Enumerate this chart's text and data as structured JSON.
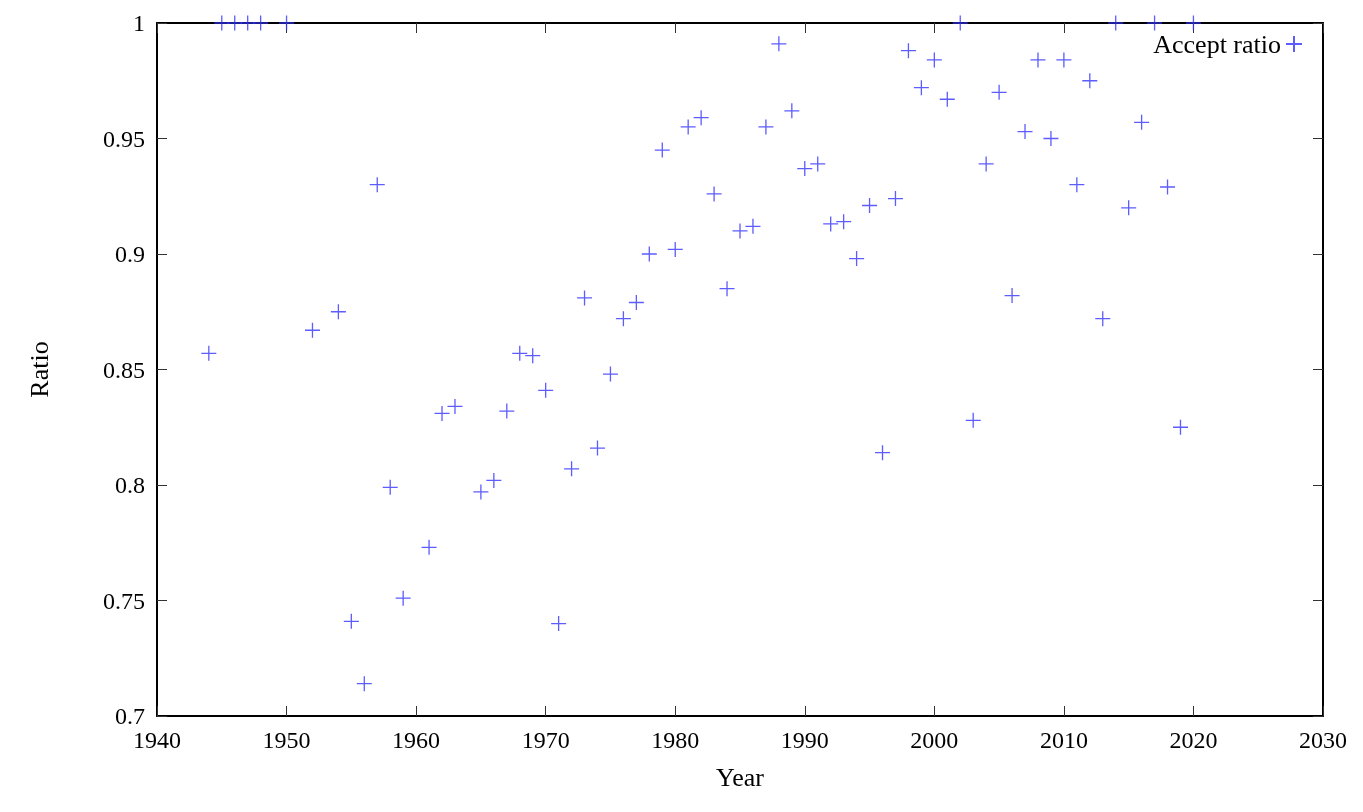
{
  "chart_data": {
    "type": "scatter",
    "xlabel": "Year",
    "ylabel": "Ratio",
    "legend": "top right",
    "marker": "cross",
    "grid": false,
    "xlim": [
      1940,
      2030
    ],
    "xticks": [
      1940,
      1950,
      1960,
      1970,
      1980,
      1990,
      2000,
      2010,
      2020,
      2030
    ],
    "ylim": [
      0.7,
      1
    ],
    "yticks": [
      0.7,
      0.75,
      0.8,
      0.85,
      0.9,
      0.95,
      1
    ],
    "series": [
      {
        "name": "Accept ratio",
        "color": "#3333ff",
        "x": [
          1944,
          1945,
          1946,
          1947,
          1948,
          1950,
          1952,
          1954,
          1955,
          1956,
          1957,
          1958,
          1959,
          1961,
          1962,
          1963,
          1965,
          1966,
          1967,
          1968,
          1969,
          1970,
          1971,
          1972,
          1973,
          1974,
          1975,
          1976,
          1977,
          1978,
          1979,
          1980,
          1981,
          1982,
          1983,
          1984,
          1985,
          1986,
          1987,
          1988,
          1989,
          1990,
          1991,
          1992,
          1993,
          1994,
          1995,
          1996,
          1997,
          1998,
          1999,
          2000,
          2001,
          2002,
          2003,
          2004,
          2005,
          2006,
          2007,
          2008,
          2009,
          2010,
          2011,
          2012,
          2013,
          2014,
          2015,
          2016,
          2017,
          2018,
          2019,
          2020
        ],
        "values": [
          0.857,
          1,
          1,
          1,
          1,
          1,
          0.867,
          0.875,
          0.741,
          0.714,
          0.93,
          0.799,
          0.751,
          0.773,
          0.831,
          0.834,
          0.797,
          0.802,
          0.832,
          0.857,
          0.856,
          0.841,
          0.74,
          0.807,
          0.881,
          0.816,
          0.848,
          0.872,
          0.879,
          0.9,
          0.945,
          0.902,
          0.955,
          0.959,
          0.926,
          0.885,
          0.91,
          0.912,
          0.955,
          0.991,
          0.962,
          0.937,
          0.939,
          0.913,
          0.914,
          0.898,
          0.921,
          0.814,
          0.924,
          0.988,
          0.972,
          0.984,
          0.967,
          1,
          0.828,
          0.939,
          0.97,
          0.882,
          0.953,
          0.984,
          0.95,
          0.984,
          0.93,
          0.975,
          0.872,
          1,
          0.92,
          0.957,
          1,
          0.929,
          0.825,
          1
        ]
      }
    ]
  }
}
